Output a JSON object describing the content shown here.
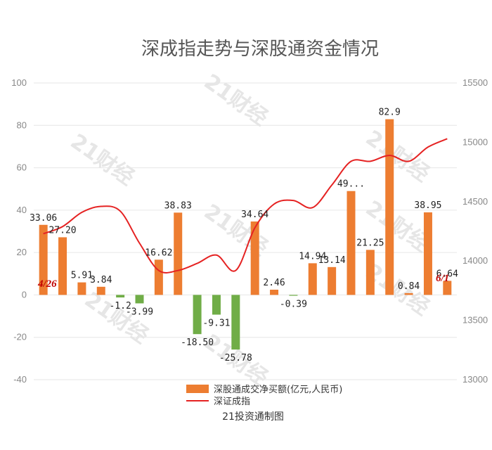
{
  "chart_data": {
    "type": "bar",
    "title": "深成指走势与深股通资金情况",
    "source": "21投资通制图",
    "watermark": "21财经",
    "start_date_label": "4/26",
    "end_date_label": "6/1",
    "left_axis": {
      "ylim": [
        -40,
        100
      ],
      "ticks": [
        -40,
        -20,
        0,
        20,
        40,
        60,
        80,
        100
      ]
    },
    "right_axis": {
      "ylim": [
        13000,
        15500
      ],
      "ticks": [
        13000,
        13500,
        14000,
        14500,
        15000,
        15500
      ]
    },
    "series": [
      {
        "name": "深股通成交净买额(亿元,人民币)",
        "kind": "bar",
        "color_positive": "#ed7d31",
        "color_negative": "#70ad47",
        "values": [
          33.06,
          27.2,
          5.91,
          3.84,
          -1.2,
          -3.99,
          16.62,
          38.83,
          -18.5,
          -9.31,
          -25.78,
          34.64,
          2.46,
          -0.39,
          14.94,
          13.14,
          49,
          21.25,
          82.9,
          0.84,
          38.95,
          6.64
        ],
        "labels": [
          "33.06",
          "27.20",
          "5.91",
          "3.84",
          "-1.2",
          "-3.99",
          "16.62",
          "38.83",
          "-18.50",
          "-9.31",
          "-25.78",
          "34.64",
          "2.46",
          "-0.39",
          "14.94",
          "13.14",
          "49...",
          "21.25",
          "82.9",
          "0.84",
          "38.95",
          "6.64"
        ]
      },
      {
        "name": "深证成指",
        "kind": "line",
        "axis": "right",
        "color": "#e52222",
        "values": [
          14230,
          14290,
          14410,
          14460,
          14420,
          14150,
          13920,
          13920,
          13980,
          14050,
          13920,
          14280,
          14480,
          14510,
          14450,
          14640,
          14840,
          14840,
          14890,
          14840,
          14960,
          15030
        ]
      }
    ]
  }
}
